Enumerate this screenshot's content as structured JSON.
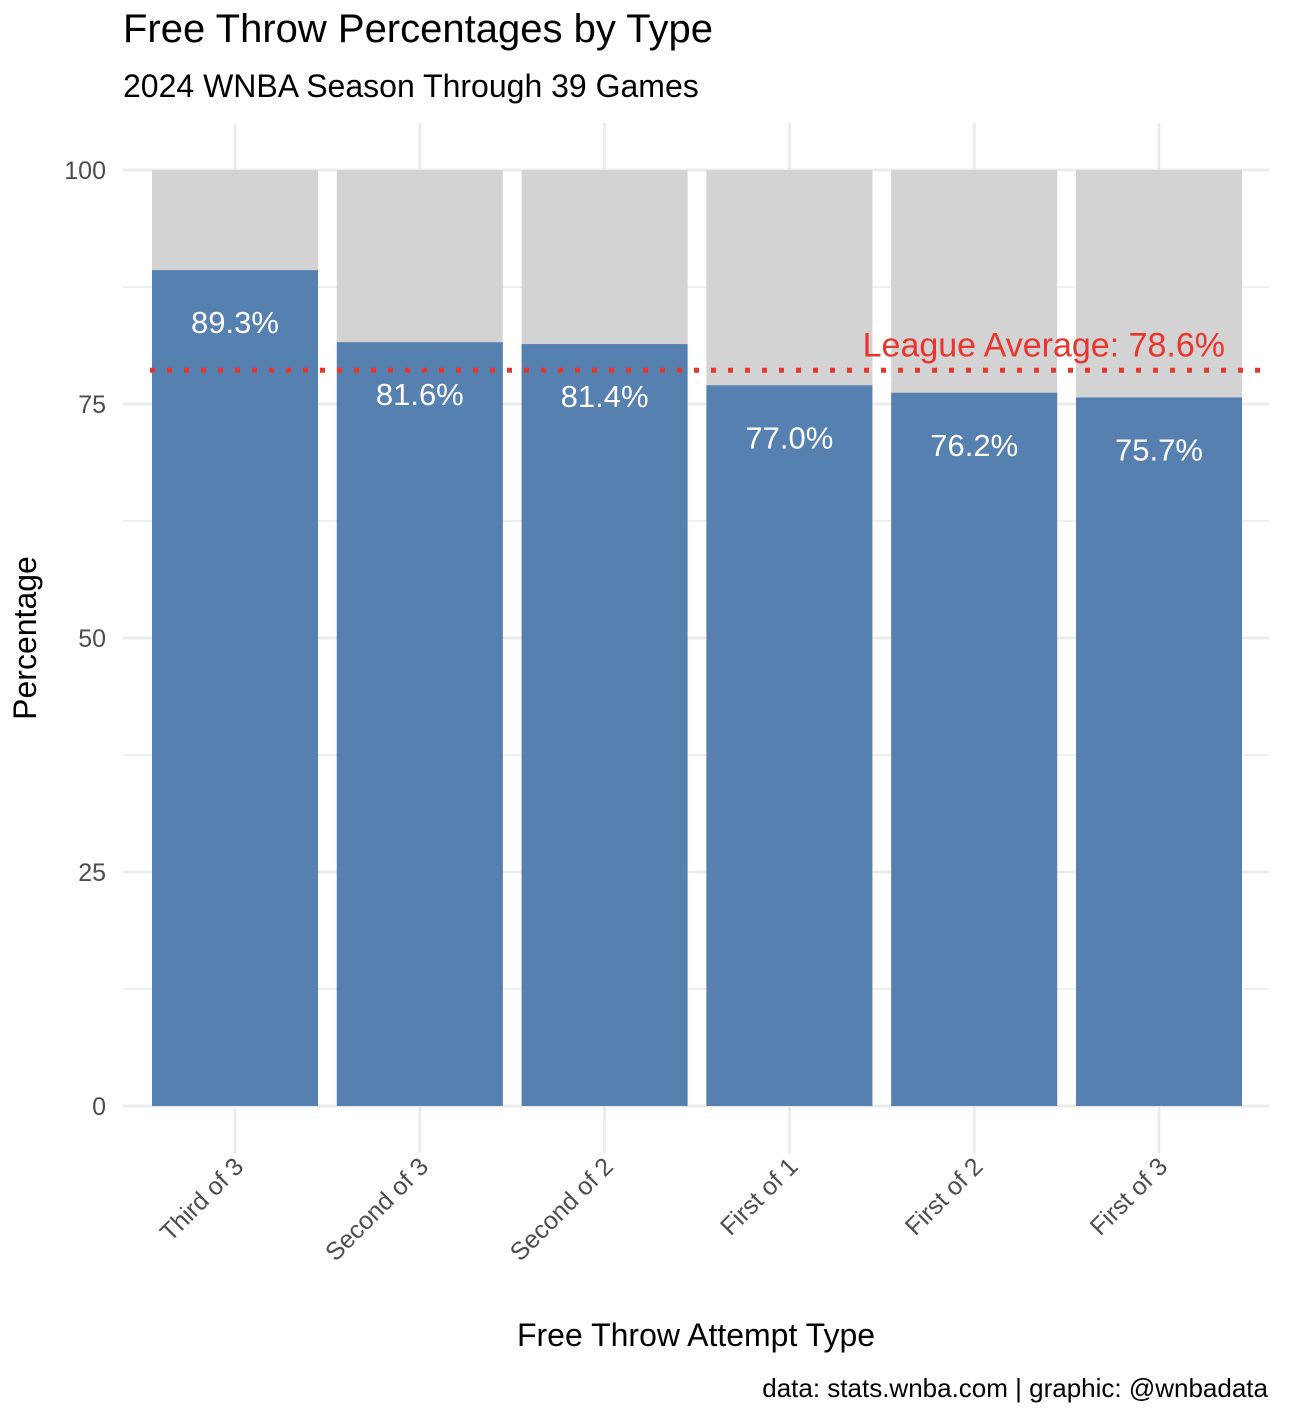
{
  "chart_data": {
    "type": "bar",
    "title": "Free Throw Percentages by Type",
    "subtitle": "2024 WNBA Season Through 39 Games",
    "xlabel": "Free Throw Attempt Type",
    "ylabel": "Percentage",
    "caption": "data: stats.wnba.com | graphic: @wnbadata",
    "categories": [
      "Third of 3",
      "Second of 3",
      "Second of 2",
      "First of 1",
      "First of 2",
      "First of 3"
    ],
    "values": [
      89.3,
      81.6,
      81.4,
      77.0,
      76.2,
      75.7
    ],
    "value_labels": [
      "89.3%",
      "81.6%",
      "81.4%",
      "77.0%",
      "76.2%",
      "75.7%"
    ],
    "background_total": 100,
    "ylim": [
      0,
      100
    ],
    "yticks": [
      0,
      25,
      50,
      75,
      100
    ],
    "ytick_labels": [
      "0",
      "25",
      "50",
      "75",
      "100"
    ],
    "grid": true,
    "reference_line": {
      "value": 78.6,
      "label": "League Average: 78.6%",
      "style": "dotted"
    },
    "colors": {
      "bar": "#5580b0",
      "background_bar": "#d3d3d3",
      "bar_label": "#ffffff",
      "reference": "#e8352d",
      "grid": "#ebebeb",
      "tick_text": "#4d4d4d",
      "title_text": "#000000"
    }
  }
}
